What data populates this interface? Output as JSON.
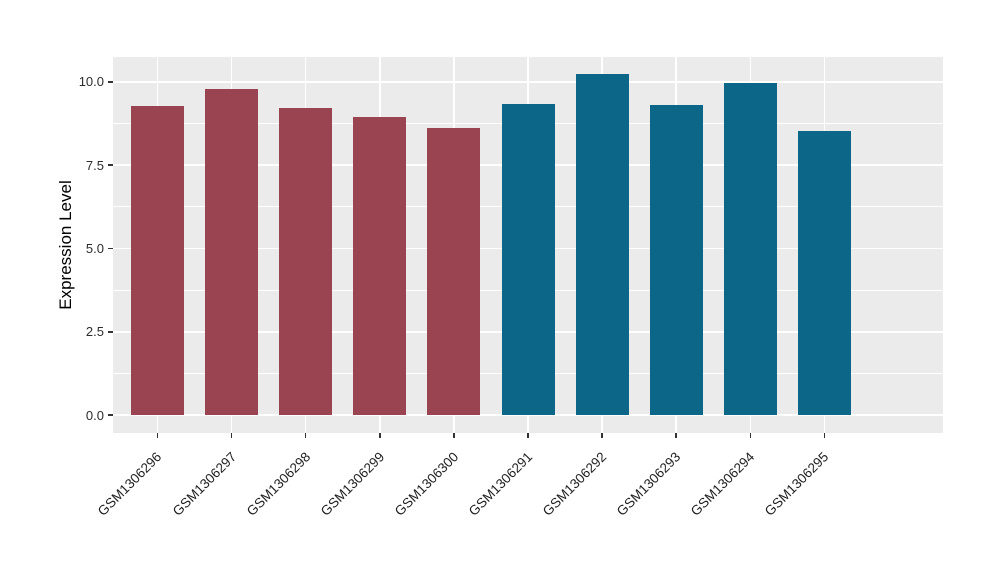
{
  "chart_data": {
    "type": "bar",
    "title": "",
    "xlabel": "",
    "ylabel": "Expression Level",
    "categories": [
      "GSM1306296",
      "GSM1306297",
      "GSM1306298",
      "GSM1306299",
      "GSM1306300",
      "GSM1306291",
      "GSM1306292",
      "GSM1306293",
      "GSM1306294",
      "GSM1306295"
    ],
    "values": [
      9.28,
      9.8,
      9.21,
      8.95,
      8.61,
      9.33,
      10.23,
      9.3,
      9.96,
      8.52
    ],
    "bar_colors": [
      "#9A4452",
      "#9A4452",
      "#9A4452",
      "#9A4452",
      "#9A4452",
      "#0B6687",
      "#0B6687",
      "#0B6687",
      "#0B6687",
      "#0B6687"
    ],
    "group_colors": {
      "left_group": "#9A4452",
      "right_group": "#0B6687"
    },
    "y_ticks": [
      {
        "value": 0,
        "label": "0.0"
      },
      {
        "value": 2.5,
        "label": "2.5"
      },
      {
        "value": 5,
        "label": "5.0"
      },
      {
        "value": 7.5,
        "label": "7.5"
      },
      {
        "value": 10,
        "label": "10.0"
      }
    ],
    "ylim": [
      -0.54,
      10.75
    ],
    "grid": {
      "major": [
        0,
        2.5,
        5,
        7.5,
        10
      ],
      "minor": [
        1.25,
        3.75,
        6.25,
        8.75
      ],
      "color": "#FFFFFF",
      "vertical_at_bar_centers": true
    },
    "panel_bg": "#EBEBEB",
    "background": "#FFFFFF",
    "tick_color": "#333333",
    "legend": "none",
    "x_label_rotation_deg": 45
  }
}
